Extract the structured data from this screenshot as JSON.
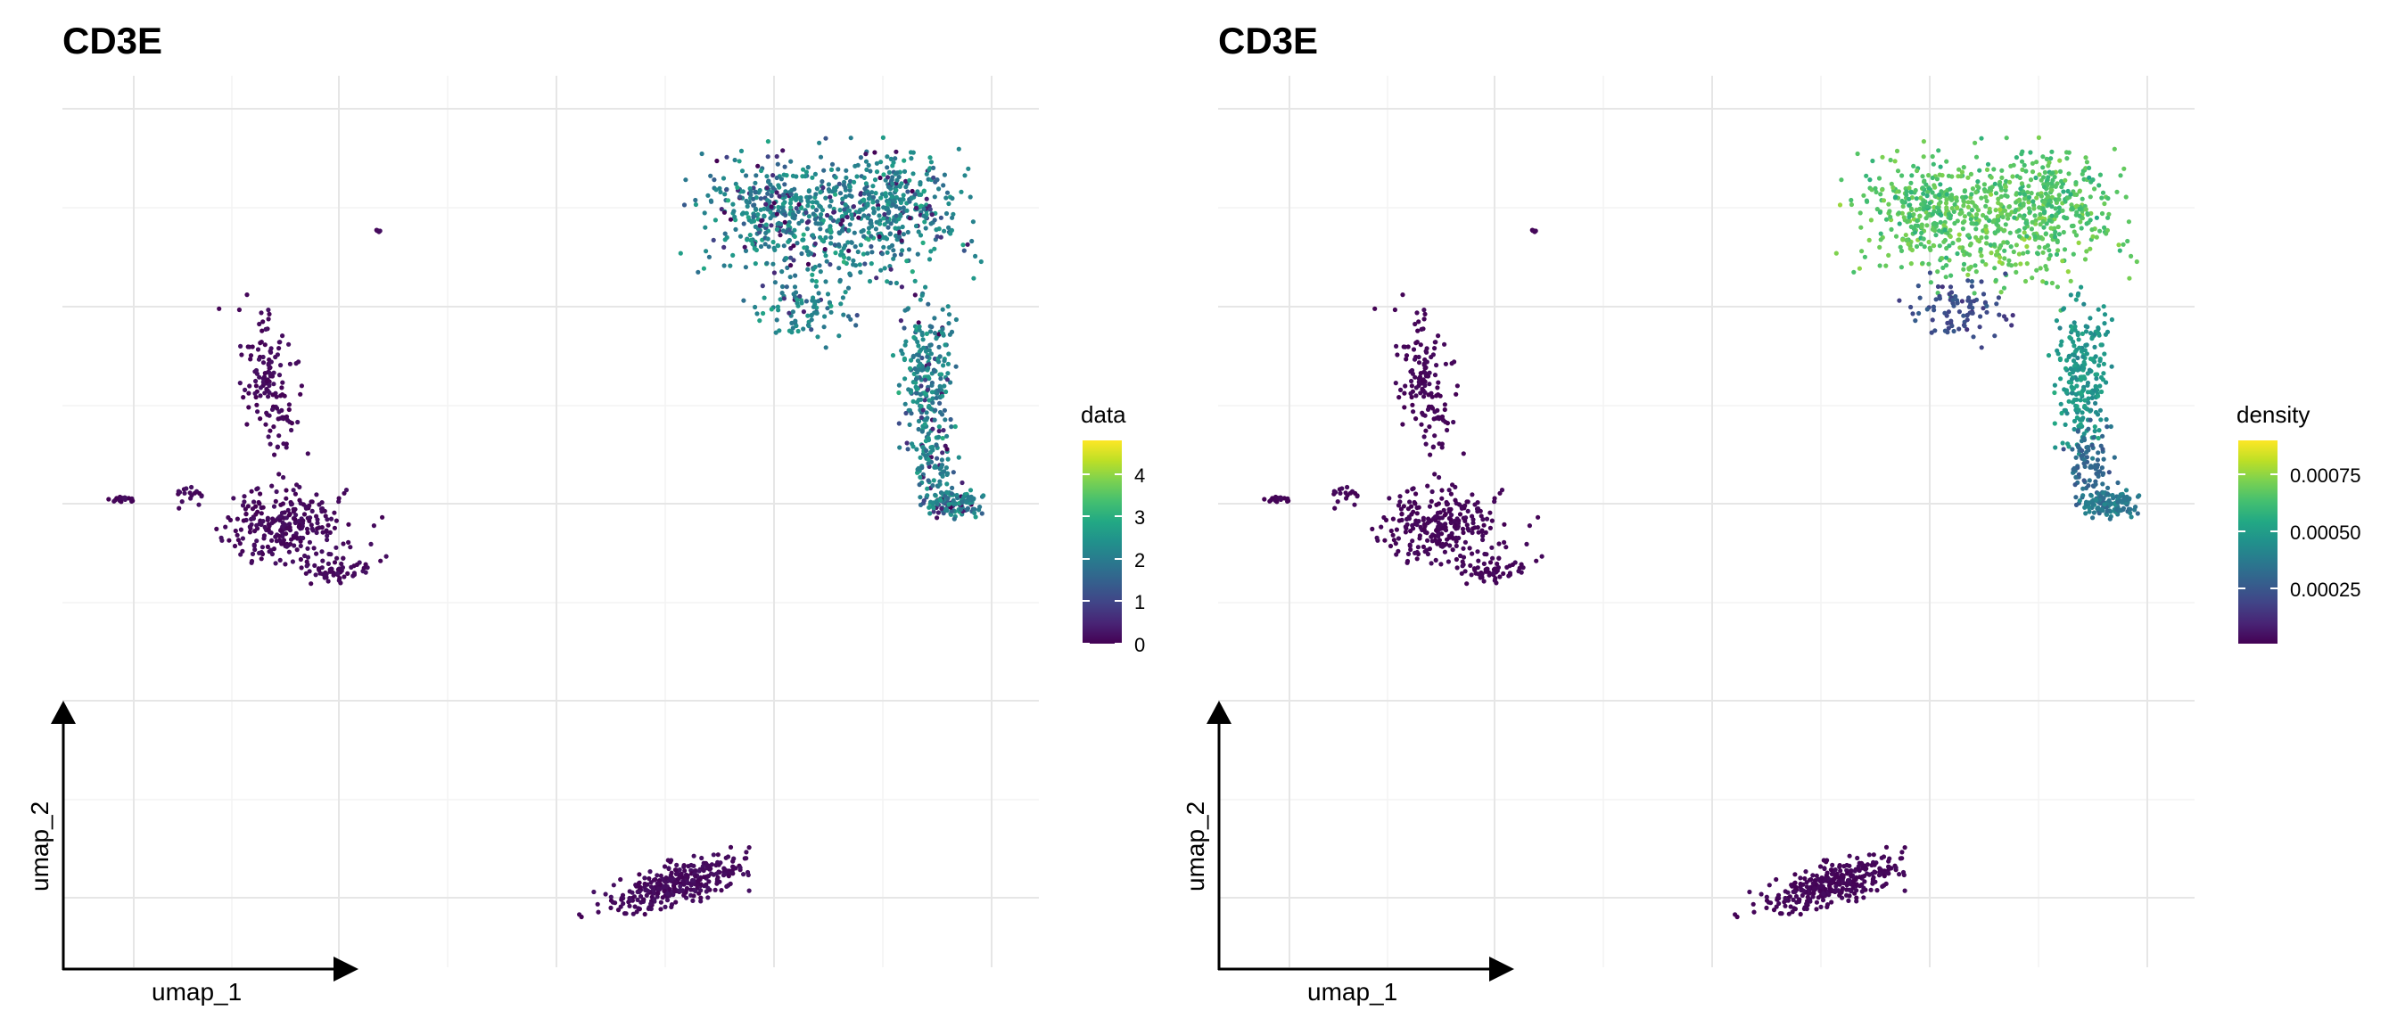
{
  "figure": {
    "panels": [
      {
        "title": "CD3E",
        "legend_title": "data",
        "xlabel": "umap_1",
        "ylabel": "umap_2"
      },
      {
        "title": "CD3E",
        "legend_title": "density",
        "xlabel": "umap_1",
        "ylabel": "umap_2"
      }
    ]
  },
  "chart_data": [
    {
      "type": "scatter",
      "title": "CD3E",
      "xlabel": "umap_1",
      "ylabel": "umap_2",
      "grid": true,
      "axis_ticks_shown": false,
      "legend_placement": "right",
      "color_variable": "data",
      "colormap": "viridis",
      "color_range": [
        0,
        4.8
      ],
      "colorbar_ticks": [
        "0",
        "1",
        "2",
        "3",
        "4"
      ],
      "clusters": [
        {
          "name": "upper-right cluster",
          "color_level_range": [
            0,
            4.8
          ],
          "typical_level": 2.3
        },
        {
          "name": "left cluster",
          "color_level_range": [
            0,
            0.3
          ],
          "typical_level": 0.05
        },
        {
          "name": "bottom cluster",
          "color_level_range": [
            0,
            0.3
          ],
          "typical_level": 0.05
        },
        {
          "name": "small isolated cluster",
          "color_level_range": [
            0,
            0.3
          ],
          "typical_level": 0.05
        }
      ]
    },
    {
      "type": "scatter",
      "title": "CD3E",
      "xlabel": "umap_1",
      "ylabel": "umap_2",
      "grid": true,
      "axis_ticks_shown": false,
      "legend_placement": "right",
      "color_variable": "density",
      "colormap": "viridis",
      "color_range": [
        0,
        0.00092
      ],
      "colorbar_ticks": [
        "0.00025",
        "0.00050",
        "0.00075"
      ],
      "clusters": [
        {
          "name": "upper-right cluster",
          "color_level_range": [
            0.00015,
            0.00092
          ],
          "typical_level": 0.0005
        },
        {
          "name": "left cluster",
          "color_level_range": [
            0,
            5e-05
          ],
          "typical_level": 1e-05
        },
        {
          "name": "bottom cluster",
          "color_level_range": [
            0,
            5e-05
          ],
          "typical_level": 1e-05
        },
        {
          "name": "small isolated cluster",
          "color_level_range": [
            0,
            5e-05
          ],
          "typical_level": 1e-05
        }
      ]
    }
  ]
}
